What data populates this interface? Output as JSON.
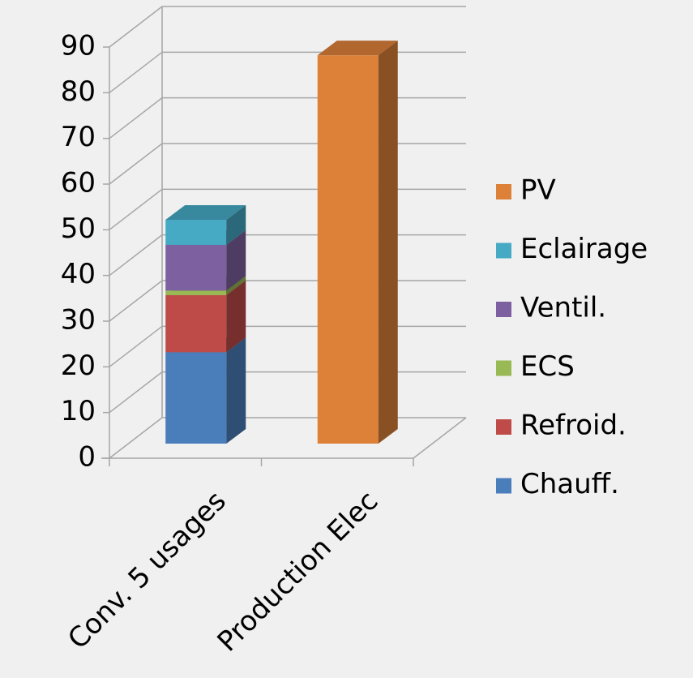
{
  "chart_data": {
    "type": "bar3d_stacked",
    "categories": [
      "Conv. 5 usages",
      "Production Elec"
    ],
    "series": [
      {
        "name": "Chauff.",
        "color": "#4a7ebb",
        "values": [
          20,
          null
        ]
      },
      {
        "name": "Refroid.",
        "color": "#be4b48",
        "values": [
          12.5,
          null
        ]
      },
      {
        "name": "ECS",
        "color": "#98b954",
        "values": [
          1,
          null
        ]
      },
      {
        "name": "Ventil.",
        "color": "#7d60a0",
        "values": [
          10,
          null
        ]
      },
      {
        "name": "Eclairage",
        "color": "#46aac5",
        "values": [
          5.5,
          null
        ]
      },
      {
        "name": "PV",
        "color": "#dd8139",
        "values": [
          null,
          85
        ]
      }
    ],
    "ylim": [
      0,
      90
    ],
    "yticks": [
      0,
      10,
      20,
      30,
      40,
      50,
      60,
      70,
      80,
      90
    ],
    "grid": true,
    "legend": "right"
  }
}
